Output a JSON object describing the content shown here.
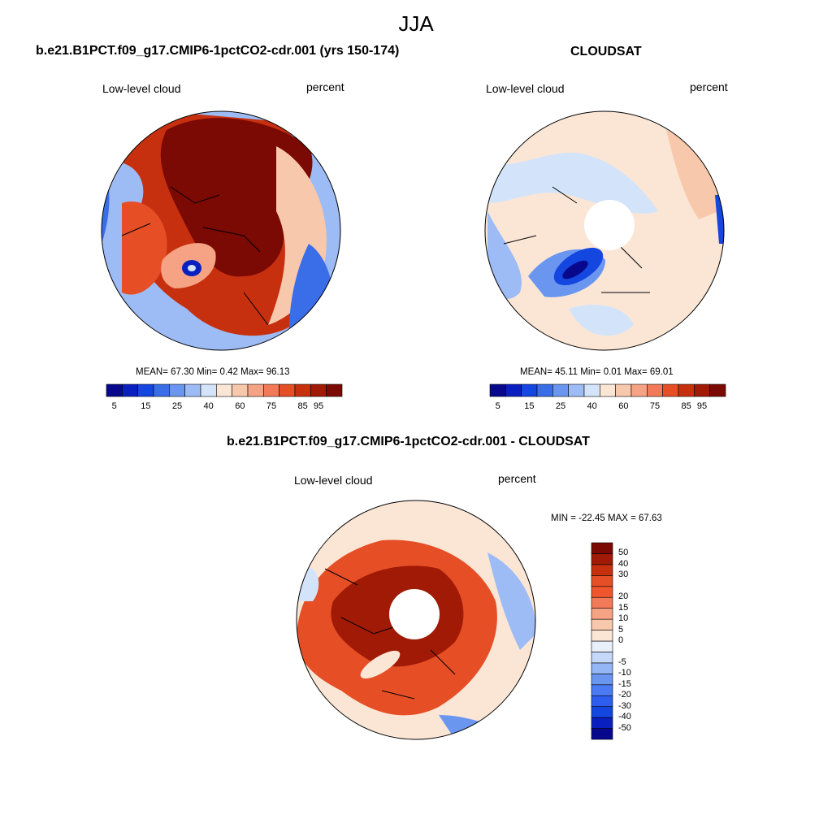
{
  "suptitle": "JJA",
  "panels": [
    {
      "title": "b.e21.B1PCT.f09_g17.CMIP6-1pctCO2-cdr.001 (yrs 150-174)",
      "left_label": "Low-level cloud",
      "right_label": "percent",
      "stats": "MEAN=  67.30  Min=   0.42  Max=  96.13",
      "mean": 67.3,
      "min": 0.42,
      "max": 96.13
    },
    {
      "title": "CLOUDSAT",
      "left_label": "Low-level cloud",
      "right_label": "percent",
      "stats": "MEAN=  45.11  Min=   0.01  Max=  69.01",
      "mean": 45.11,
      "min": 0.01,
      "max": 69.01,
      "polar_gap": true
    },
    {
      "title": "b.e21.B1PCT.f09_g17.CMIP6-1pctCO2-cdr.001 - CLOUDSAT",
      "left_label": "Low-level cloud",
      "right_label": "percent",
      "stats": "MIN = -22.45 MAX =  67.63",
      "min": -22.45,
      "max": 67.63,
      "polar_gap": true
    }
  ],
  "colorbar_abs": {
    "colors": [
      "#08088c",
      "#0a1fbf",
      "#1446e0",
      "#3a6ee8",
      "#6a96f0",
      "#9dbcf5",
      "#d3e4fa",
      "#fbe6d6",
      "#f8c8ac",
      "#f5a384",
      "#f27a58",
      "#e64e26",
      "#c7300f",
      "#a01a06",
      "#7a0a03"
    ],
    "tick_labels": [
      "5",
      "15",
      "25",
      "40",
      "60",
      "75",
      "85",
      "95"
    ]
  },
  "colorbar_diff": {
    "colors": [
      "#08088c",
      "#0a1fbf",
      "#1446e0",
      "#2e5ef0",
      "#4a7bf2",
      "#6a96f0",
      "#94b6f5",
      "#c4d8fa",
      "#e8f0fc",
      "#fbe6d6",
      "#f8c8ac",
      "#f5a384",
      "#f27a58",
      "#f0562e",
      "#e64e26",
      "#c7300f",
      "#a01a06",
      "#7a0a03"
    ],
    "tick_labels": [
      "-50",
      "-40",
      "-30",
      "-20",
      "-15",
      "-10",
      "-5",
      "0",
      "5",
      "10",
      "15",
      "20",
      "30",
      "40",
      "50"
    ]
  }
}
